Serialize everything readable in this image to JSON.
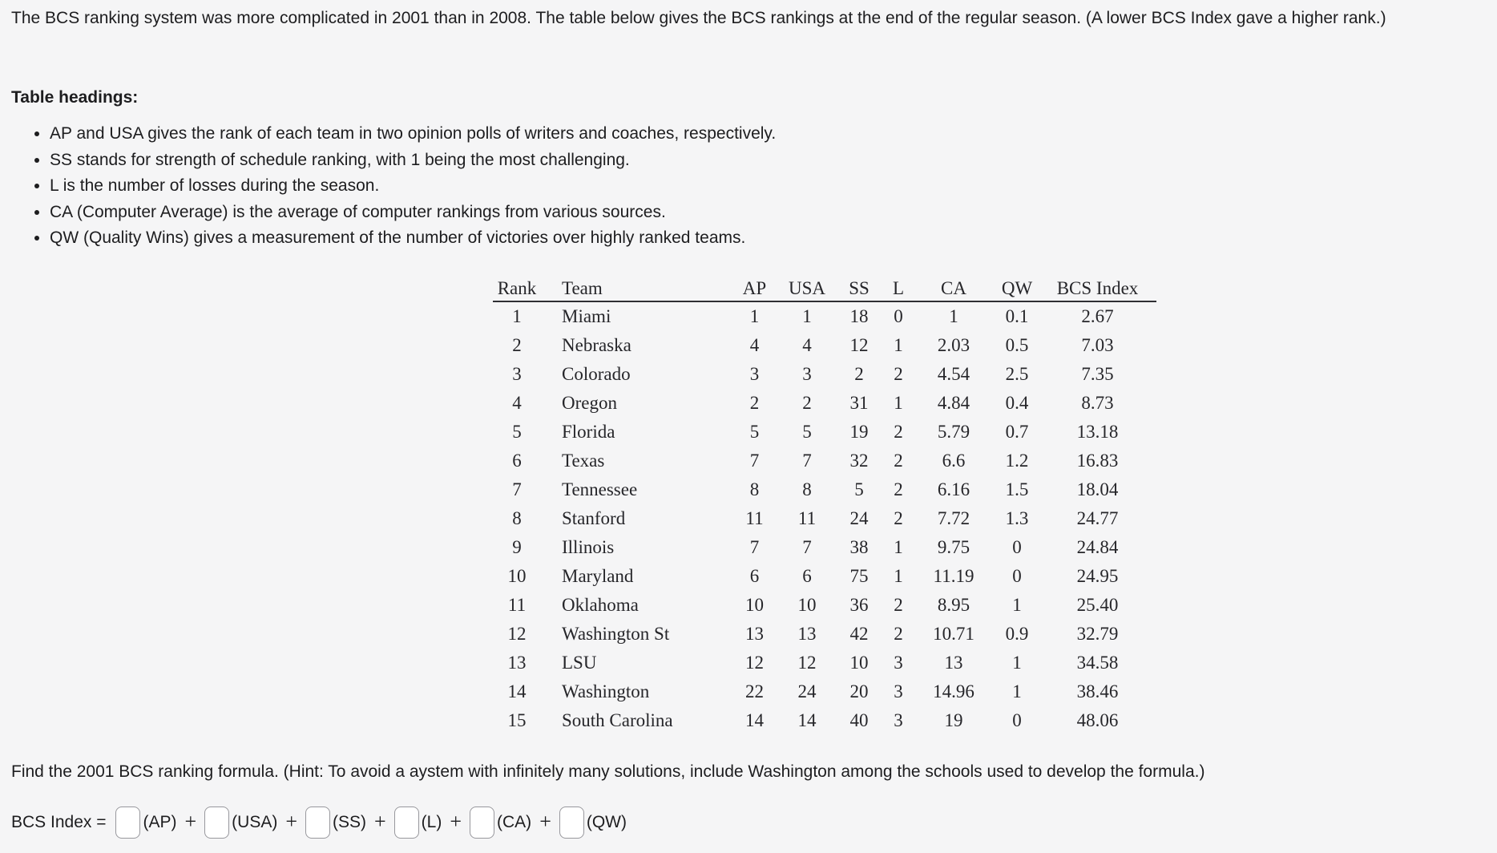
{
  "page": {
    "background_color": "#f5f5f6",
    "text_color": "#1d1d1f"
  },
  "intro": "The BCS ranking system was more complicated in 2001 than in 2008. The table below gives the BCS rankings at the end of the regular season. (A lower BCS Index gave a higher rank.)",
  "headings_label": "Table headings:",
  "bullets": [
    "AP and USA gives the rank of each team in two opinion polls of writers and coaches, respectively.",
    "SS stands for strength of schedule ranking, with 1 being the most challenging.",
    "L is the number of losses during the season.",
    "CA (Computer Average) is the average of computer rankings from various sources.",
    "QW (Quality Wins) gives a measurement of the number of victories over highly ranked teams."
  ],
  "table": {
    "columns": [
      "Rank",
      "Team",
      "AP",
      "USA",
      "SS",
      "L",
      "CA",
      "QW",
      "BCS Index"
    ],
    "rows": [
      [
        "1",
        "Miami",
        "1",
        "1",
        "18",
        "0",
        "1",
        "0.1",
        "2.67"
      ],
      [
        "2",
        "Nebraska",
        "4",
        "4",
        "12",
        "1",
        "2.03",
        "0.5",
        "7.03"
      ],
      [
        "3",
        "Colorado",
        "3",
        "3",
        "2",
        "2",
        "4.54",
        "2.5",
        "7.35"
      ],
      [
        "4",
        "Oregon",
        "2",
        "2",
        "31",
        "1",
        "4.84",
        "0.4",
        "8.73"
      ],
      [
        "5",
        "Florida",
        "5",
        "5",
        "19",
        "2",
        "5.79",
        "0.7",
        "13.18"
      ],
      [
        "6",
        "Texas",
        "7",
        "7",
        "32",
        "2",
        "6.6",
        "1.2",
        "16.83"
      ],
      [
        "7",
        "Tennessee",
        "8",
        "8",
        "5",
        "2",
        "6.16",
        "1.5",
        "18.04"
      ],
      [
        "8",
        "Stanford",
        "11",
        "11",
        "24",
        "2",
        "7.72",
        "1.3",
        "24.77"
      ],
      [
        "9",
        "Illinois",
        "7",
        "7",
        "38",
        "1",
        "9.75",
        "0",
        "24.84"
      ],
      [
        "10",
        "Maryland",
        "6",
        "6",
        "75",
        "1",
        "11.19",
        "0",
        "24.95"
      ],
      [
        "11",
        "Oklahoma",
        "10",
        "10",
        "36",
        "2",
        "8.95",
        "1",
        "25.40"
      ],
      [
        "12",
        "Washington St",
        "13",
        "13",
        "42",
        "2",
        "10.71",
        "0.9",
        "32.79"
      ],
      [
        "13",
        "LSU",
        "12",
        "12",
        "10",
        "3",
        "13",
        "1",
        "34.58"
      ],
      [
        "14",
        "Washington",
        "22",
        "24",
        "20",
        "3",
        "14.96",
        "1",
        "38.46"
      ],
      [
        "15",
        "South Carolina",
        "14",
        "14",
        "40",
        "3",
        "19",
        "0",
        "48.06"
      ]
    ]
  },
  "question": "Find the 2001 BCS ranking formula. (Hint: To avoid a aystem with infinitely many solutions, include Washington among the schools used to develop the formula.)",
  "formula": {
    "prefix": "BCS Index =",
    "operator": "+",
    "terms": [
      {
        "name": "ap",
        "label": "(AP)",
        "value": "",
        "placeholder": ""
      },
      {
        "name": "usa",
        "label": "(USA)",
        "value": "",
        "placeholder": ""
      },
      {
        "name": "ss",
        "label": "(SS)",
        "value": "",
        "placeholder": ""
      },
      {
        "name": "l",
        "label": "(L)",
        "value": "",
        "placeholder": ""
      },
      {
        "name": "ca",
        "label": "(CA)",
        "value": "",
        "placeholder": ""
      },
      {
        "name": "qw",
        "label": "(QW)",
        "value": "",
        "placeholder": ""
      }
    ]
  }
}
